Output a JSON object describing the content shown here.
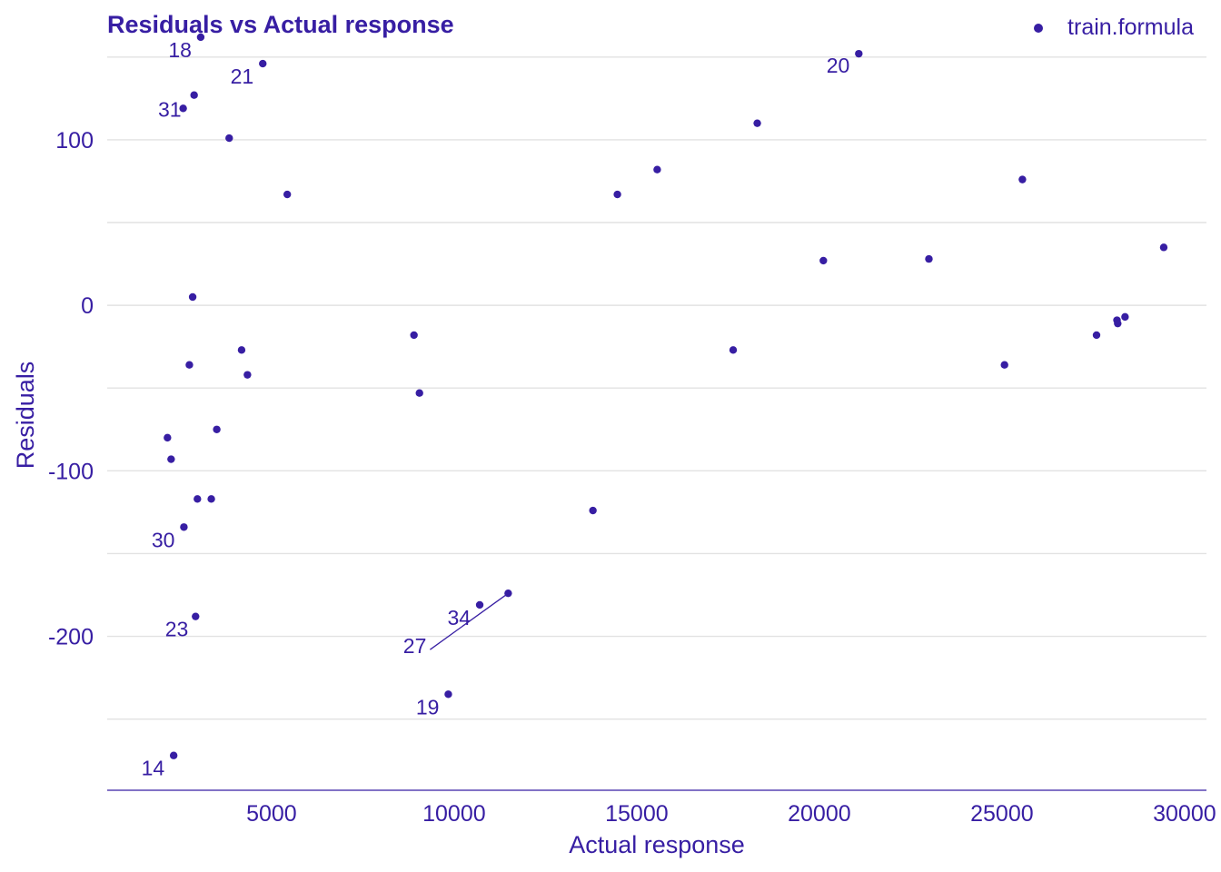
{
  "chart_data": {
    "type": "scatter",
    "title": "Residuals vs Actual response",
    "xlabel": "Actual response",
    "ylabel": "Residuals",
    "xlim": [
      500,
      30600
    ],
    "ylim": [
      -293,
      168
    ],
    "x_ticks": [
      5000,
      10000,
      15000,
      20000,
      25000,
      30000
    ],
    "x_tick_labels": [
      "5000",
      "10000",
      "15000",
      "20000",
      "25000",
      "30000"
    ],
    "y_ticks": [
      100,
      0,
      -100,
      -200
    ],
    "y_tick_labels": [
      "100",
      "0",
      "-100",
      "-200"
    ],
    "y_grid": [
      150,
      100,
      50,
      0,
      -50,
      -100,
      -150,
      -200,
      -250
    ],
    "grid": true,
    "legend_position": "top-right",
    "colors": {
      "main": "#371ea3",
      "grid": "#e2e2e2"
    },
    "series": [
      {
        "name": "train.formula",
        "points": [
          {
            "x": 3060,
            "y": 162,
            "label": "18"
          },
          {
            "x": 4760,
            "y": 146,
            "label": "21"
          },
          {
            "x": 2880,
            "y": 127,
            "label": ""
          },
          {
            "x": 2580,
            "y": 119,
            "label": "31"
          },
          {
            "x": 3840,
            "y": 101,
            "label": ""
          },
          {
            "x": 5430,
            "y": 67,
            "label": ""
          },
          {
            "x": 2840,
            "y": 5,
            "label": ""
          },
          {
            "x": 4180,
            "y": -27,
            "label": ""
          },
          {
            "x": 2750,
            "y": -36,
            "label": ""
          },
          {
            "x": 4340,
            "y": -42,
            "label": ""
          },
          {
            "x": 3500,
            "y": -75,
            "label": ""
          },
          {
            "x": 2150,
            "y": -80,
            "label": ""
          },
          {
            "x": 2250,
            "y": -93,
            "label": ""
          },
          {
            "x": 2970,
            "y": -117,
            "label": ""
          },
          {
            "x": 3350,
            "y": -117,
            "label": ""
          },
          {
            "x": 2600,
            "y": -134,
            "label": "30"
          },
          {
            "x": 2920,
            "y": -188,
            "label": "23"
          },
          {
            "x": 2320,
            "y": -272,
            "label": "14"
          },
          {
            "x": 8900,
            "y": -18,
            "label": ""
          },
          {
            "x": 9050,
            "y": -53,
            "label": ""
          },
          {
            "x": 9840,
            "y": -235,
            "label": "19"
          },
          {
            "x": 10700,
            "y": -181,
            "label": "34"
          },
          {
            "x": 11480,
            "y": -174,
            "label": "27"
          },
          {
            "x": 13800,
            "y": -124,
            "label": ""
          },
          {
            "x": 14470,
            "y": 67,
            "label": ""
          },
          {
            "x": 15560,
            "y": 82,
            "label": ""
          },
          {
            "x": 17640,
            "y": -27,
            "label": ""
          },
          {
            "x": 18300,
            "y": 110,
            "label": ""
          },
          {
            "x": 20110,
            "y": 27,
            "label": ""
          },
          {
            "x": 21080,
            "y": 152,
            "label": "20"
          },
          {
            "x": 23000,
            "y": 28,
            "label": ""
          },
          {
            "x": 25070,
            "y": -36,
            "label": ""
          },
          {
            "x": 25560,
            "y": 76,
            "label": ""
          },
          {
            "x": 27590,
            "y": -18,
            "label": ""
          },
          {
            "x": 28150,
            "y": -9,
            "label": ""
          },
          {
            "x": 28170,
            "y": -11,
            "label": ""
          },
          {
            "x": 28370,
            "y": -7,
            "label": ""
          },
          {
            "x": 29430,
            "y": 35,
            "label": ""
          }
        ]
      }
    ]
  }
}
